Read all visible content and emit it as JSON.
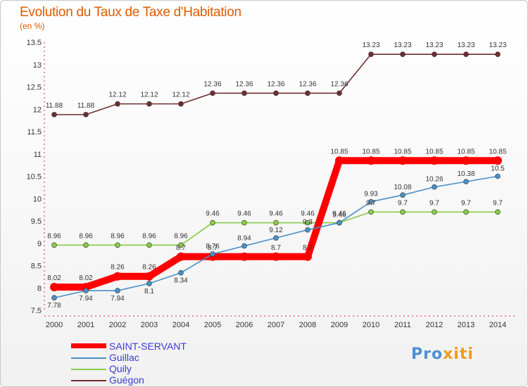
{
  "header": {
    "title": "Evolution du Taux de Taxe d'Habitation",
    "unit": "(en %)"
  },
  "logo": {
    "part1": "Pro",
    "part2": "xiti"
  },
  "chart_data": {
    "type": "line",
    "title": "Evolution du Taux de Taxe d'Habitation",
    "ylabel": "(en %)",
    "xlabel": "",
    "ylim": [
      7.5,
      13.5
    ],
    "y_ticks": [
      "7.5",
      "8",
      "8.5",
      "9",
      "9.5",
      "10",
      "10.5",
      "11",
      "11.5",
      "12",
      "12.5",
      "13",
      "13.5"
    ],
    "x": [
      "2000",
      "2001",
      "2002",
      "2003",
      "2004",
      "2005",
      "2006",
      "2007",
      "2008",
      "2009",
      "2010",
      "2011",
      "2012",
      "2013",
      "2014"
    ],
    "grid": false,
    "legend_position": "bottom-left",
    "series": [
      {
        "name": "SAINT-SERVANT",
        "color": "#ff0000",
        "values": [
          8.02,
          8.02,
          8.26,
          8.26,
          8.7,
          8.7,
          8.7,
          8.7,
          8.7,
          10.85,
          10.85,
          10.85,
          10.85,
          10.85,
          10.85
        ],
        "labels": [
          "8.02",
          "8.02",
          "8.26",
          "8.26",
          "8.7",
          "8.7",
          "",
          "8.7",
          "8.7",
          "10.85",
          "10.85",
          "10.85",
          "10.85",
          "10.85",
          "10.85"
        ]
      },
      {
        "name": "Guillac",
        "color": "#4a90c8",
        "values": [
          7.78,
          7.94,
          7.94,
          8.1,
          8.34,
          8.76,
          8.94,
          9.12,
          9.3,
          9.46,
          9.93,
          10.08,
          10.26,
          10.38,
          10.5
        ],
        "labels": [
          "7.78",
          "7.94",
          "7.94",
          "8.1",
          "8.34",
          "8.76",
          "8.94",
          "9.12",
          "9.3",
          "9.46",
          "9.93",
          "10.08",
          "10.26",
          "10.38",
          "10.5"
        ]
      },
      {
        "name": "Quily",
        "color": "#88cc44",
        "values": [
          8.96,
          8.96,
          8.96,
          8.96,
          8.96,
          9.46,
          9.46,
          9.46,
          9.46,
          9.46,
          9.7,
          9.7,
          9.7,
          9.7,
          9.7
        ],
        "labels": [
          "8.96",
          "8.96",
          "8.96",
          "8.96",
          "8.96",
          "9.46",
          "9.46",
          "9.46",
          "9.46",
          "9.46",
          "9.7",
          "9.7",
          "9.7",
          "9.7",
          "9.7"
        ]
      },
      {
        "name": "Guégon",
        "color": "#6e2e2e",
        "values": [
          11.88,
          11.88,
          12.12,
          12.12,
          12.12,
          12.36,
          12.36,
          12.36,
          12.36,
          12.36,
          13.23,
          13.23,
          13.23,
          13.23,
          13.23
        ],
        "labels": [
          "11.88",
          "11.88",
          "12.12",
          "12.12",
          "12.12",
          "12.36",
          "12.36",
          "12.36",
          "12.36",
          "12.36",
          "13.23",
          "13.23",
          "13.23",
          "13.23",
          "13.23"
        ]
      }
    ]
  }
}
